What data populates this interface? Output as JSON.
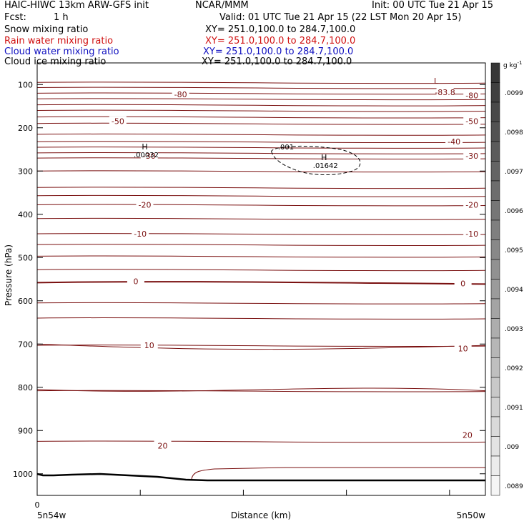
{
  "header": {
    "title_left": "HAIC-HIWC 13km ARW-GFS init",
    "center": "NCAR/MMM",
    "init": "Init: 00 UTC Tue 21 Apr 15",
    "fcst_label": "Fcst:",
    "fcst_value": "1 h",
    "valid": "Valid: 01 UTC Tue 21 Apr 15 (22 LST Mon 20 Apr 15)"
  },
  "fields": [
    {
      "name": "Snow mixing ratio",
      "xy": "XY= 251.0,100.0 to 284.7,100.0",
      "color": "#000000"
    },
    {
      "name": "Rain water mixing ratio",
      "xy": "XY= 251.0,100.0 to 284.7,100.0",
      "color": "#d01010"
    },
    {
      "name": "Cloud water mixing ratio",
      "xy": "XY= 251.0,100.0 to 284.7,100.0",
      "color": "#1010c0"
    },
    {
      "name": "Cloud ice mixing ratio",
      "xy": "XY= 251.0,100.0 to 284.7,100.0",
      "color": "#000000"
    }
  ],
  "chart_data": {
    "type": "cross-section",
    "ylabel": "Pressure (hPa)",
    "xlabel": "Distance (km)",
    "ylim": [
      1050,
      50
    ],
    "yticks": [
      100,
      200,
      300,
      400,
      500,
      600,
      700,
      800,
      900,
      1000
    ],
    "xtick_labels": {
      "left_value": "0",
      "left": "5n54w",
      "right": "5n50w"
    },
    "colorbar": {
      "units": "g kg",
      "units_sup": "-1",
      "labels": [
        ".0099",
        ".0098",
        ".0097",
        ".0096",
        ".0095",
        ".0094",
        ".0093",
        ".0092",
        ".0091",
        ".009",
        ".0089"
      ]
    },
    "isotherm_labels": [
      {
        "text": "-80",
        "x": 0.32,
        "p": 123
      },
      {
        "text": "-83.8",
        "x": 0.91,
        "p": 118
      },
      {
        "text": "-80",
        "x": 0.97,
        "p": 125
      },
      {
        "text": "-50",
        "x": 0.18,
        "p": 185
      },
      {
        "text": "-50",
        "x": 0.97,
        "p": 185
      },
      {
        "text": "-40",
        "x": 0.93,
        "p": 232
      },
      {
        "text": "-30",
        "x": 0.25,
        "p": 265
      },
      {
        "text": "-30",
        "x": 0.97,
        "p": 265
      },
      {
        "text": "-20",
        "x": 0.24,
        "p": 378
      },
      {
        "text": "-20",
        "x": 0.97,
        "p": 378
      },
      {
        "text": "-10",
        "x": 0.23,
        "p": 445
      },
      {
        "text": "-10",
        "x": 0.97,
        "p": 445
      },
      {
        "text": "0",
        "x": 0.22,
        "p": 555
      },
      {
        "text": "0",
        "x": 0.95,
        "p": 560
      },
      {
        "text": "10",
        "x": 0.25,
        "p": 703
      },
      {
        "text": "10",
        "x": 0.95,
        "p": 710
      },
      {
        "text": "20",
        "x": 0.28,
        "p": 935
      },
      {
        "text": "20",
        "x": 0.96,
        "p": 910
      }
    ],
    "markers": [
      {
        "letter": "H",
        "value": ".00032",
        "x": 0.24,
        "p": 250
      },
      {
        "letter": "H",
        "value": ".01642",
        "x": 0.64,
        "p": 275
      },
      {
        "letter": "L",
        "value": "",
        "x": 0.89,
        "p": 98
      }
    ],
    "contour_label": {
      "text": ".001",
      "x": 0.555,
      "p": 243
    }
  }
}
